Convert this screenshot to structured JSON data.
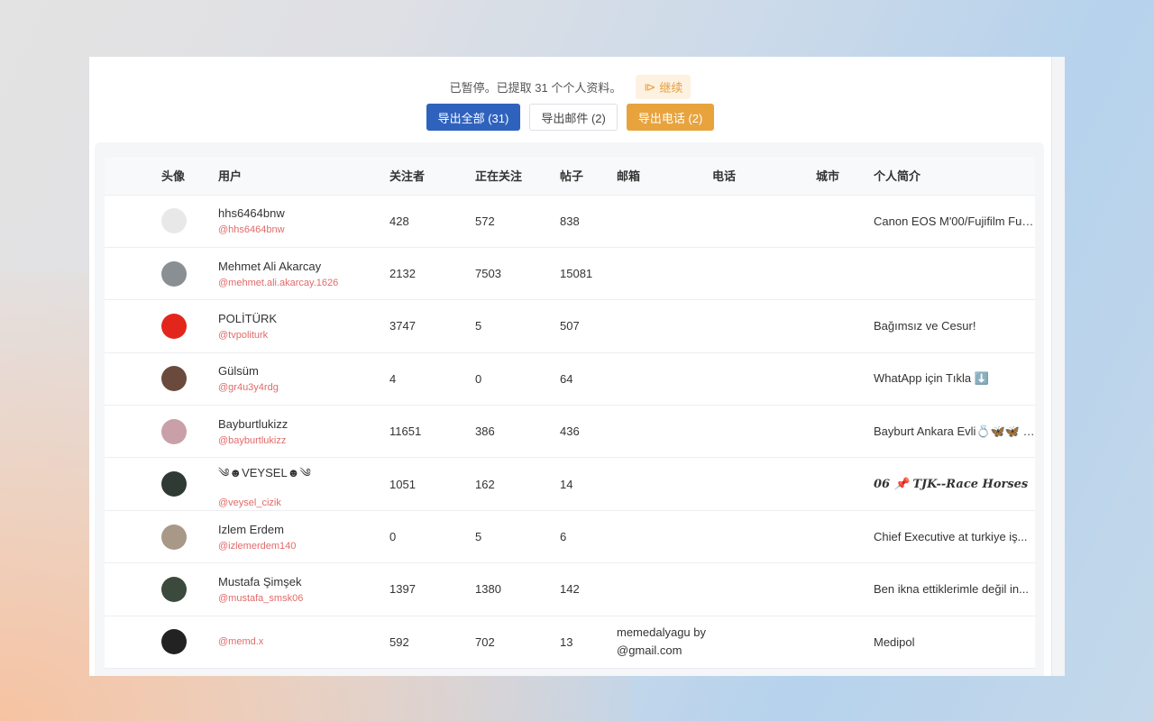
{
  "status": {
    "text": "已暂停。已提取 31 个个人资料。",
    "resume_label": "继续"
  },
  "buttons": {
    "export_all": "导出全部 (31)",
    "export_email": "导出邮件 (2)",
    "export_phone": "导出电话 (2)"
  },
  "colors": {
    "primary": "#2f62bd",
    "warning": "#e8a33d",
    "handle": "#e26a6a"
  },
  "table": {
    "headers": [
      "头像",
      "用户",
      "关注者",
      "正在关注",
      "帖子",
      "邮箱",
      "电话",
      "城市",
      "个人简介"
    ],
    "rows": [
      {
        "name": "hhs6464bnw",
        "handle": "@hhs6464bnw",
        "followers": "428",
        "following": "572",
        "posts": "838",
        "email": "",
        "phone": "",
        "city": "",
        "bio": "Canon EOS M'00/Fujifilm Fuji...",
        "avatar": "#e8e8e8"
      },
      {
        "name": "Mehmet Ali Akarcay",
        "handle": "@mehmet.ali.akarcay.1626",
        "followers": "2132",
        "following": "7503",
        "posts": "15081",
        "email": "",
        "phone": "",
        "city": "",
        "bio": "",
        "avatar": "#8a8f93"
      },
      {
        "name": "POLİTÜRK",
        "handle": "@tvpoliturk",
        "followers": "3747",
        "following": "5",
        "posts": "507",
        "email": "",
        "phone": "",
        "city": "",
        "bio": "Bağımsız ve Cesur!",
        "avatar": "#e3261c"
      },
      {
        "name": "Gülsüm",
        "handle": "@gr4u3y4rdg",
        "followers": "4",
        "following": "0",
        "posts": "64",
        "email": "",
        "phone": "",
        "city": "",
        "bio": "WhatApp için Tıkla ⬇️",
        "avatar": "#6b4a3e"
      },
      {
        "name": "Bayburtlukizz",
        "handle": "@bayburtlukizz",
        "followers": "11651",
        "following": "386",
        "posts": "436",
        "email": "",
        "phone": "",
        "city": "",
        "bio": "Bayburt Ankara Evli💍🦋🦋 İ...",
        "avatar": "#c9a0a8"
      },
      {
        "name": "༄☻VEYSEL☻༄",
        "handle": "@veysel_cizik",
        "followers": "1051",
        "following": "162",
        "posts": "14",
        "email": "",
        "phone": "",
        "city": "",
        "bio": "06 📌 TJK--Race Horses",
        "avatar": "#2e3a33"
      },
      {
        "name": "Izlem Erdem",
        "handle": "@izlemerdem140",
        "followers": "0",
        "following": "5",
        "posts": "6",
        "email": "",
        "phone": "",
        "city": "",
        "bio": "Chief Executive at turkiye iş...",
        "avatar": "#a89888"
      },
      {
        "name": "Mustafa Şimşek",
        "handle": "@mustafa_smsk06",
        "followers": "1397",
        "following": "1380",
        "posts": "142",
        "email": "",
        "phone": "",
        "city": "",
        "bio": "Ben ikna ettiklerimle değil in...",
        "avatar": "#3b4a3c"
      },
      {
        "name": "",
        "handle": "@memd.x",
        "followers": "592",
        "following": "702",
        "posts": "13",
        "email": "memedalyagu by@gmail.com",
        "phone": "",
        "city": "",
        "bio": "Medipol",
        "avatar": "#222"
      }
    ]
  }
}
